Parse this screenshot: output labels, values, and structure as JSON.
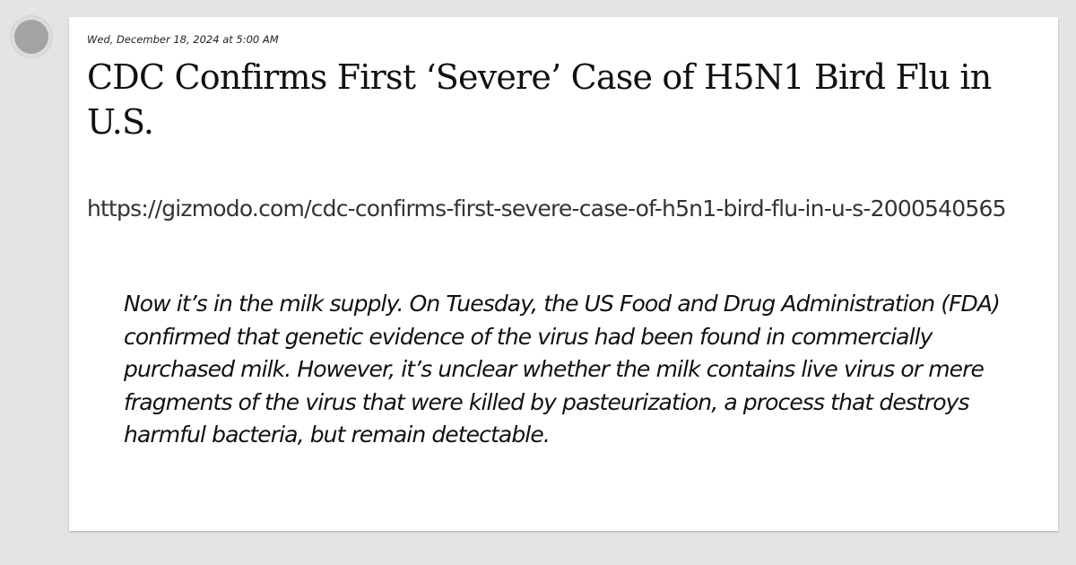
{
  "post": {
    "timestamp": "Wed, December 18, 2024 at 5:00 AM",
    "headline": "CDC Confirms First ‘Severe’ Case of H5N1 Bird Flu in U.S.",
    "url": "https://gizmodo.com/cdc-confirms-first-severe-case-of-h5n1-bird-flu-in-u-s-2000540565",
    "quote": "Now it’s in the milk supply. On Tuesday, the US Food and Drug Administration (FDA) confirmed that genetic evidence of the virus had been found in commercially purchased milk. However, it’s unclear whether the milk contains live virus or mere fragments of the virus that were killed by pasteurization, a process that destroys harmful bacteria, but remain detectable."
  },
  "colors": {
    "page_background": "#e4e4e4",
    "card_background": "#ffffff",
    "avatar_fill": "#a3a3a3",
    "text": "#111111",
    "url_text": "#333333"
  }
}
